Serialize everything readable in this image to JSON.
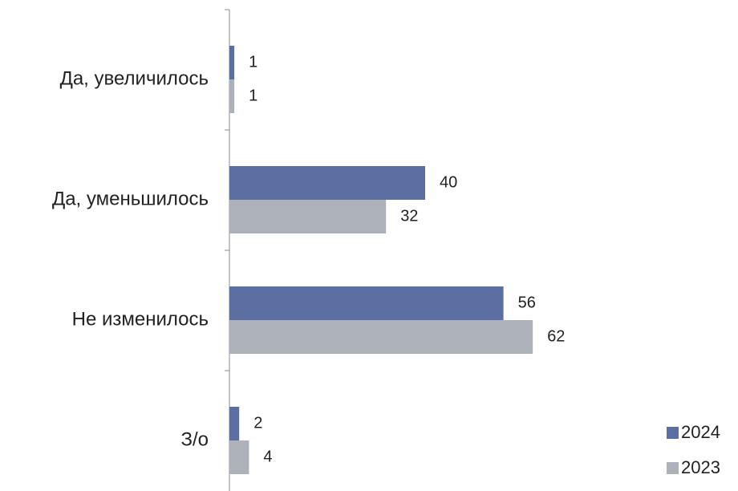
{
  "chart_data": {
    "type": "bar",
    "orientation": "horizontal",
    "title": "",
    "xlabel": "",
    "ylabel": "",
    "xlim": [
      0,
      100
    ],
    "grid": false,
    "legend_position": "bottom-right",
    "categories": [
      "Да, увеличилось",
      "Да, уменьшилось",
      "Не изменилось",
      "З/о"
    ],
    "series": [
      {
        "name": "2024",
        "color": "#5b6fa3",
        "values": [
          1,
          40,
          56,
          2
        ]
      },
      {
        "name": "2023",
        "color": "#adb2ba",
        "values": [
          1,
          32,
          62,
          4
        ]
      }
    ]
  }
}
